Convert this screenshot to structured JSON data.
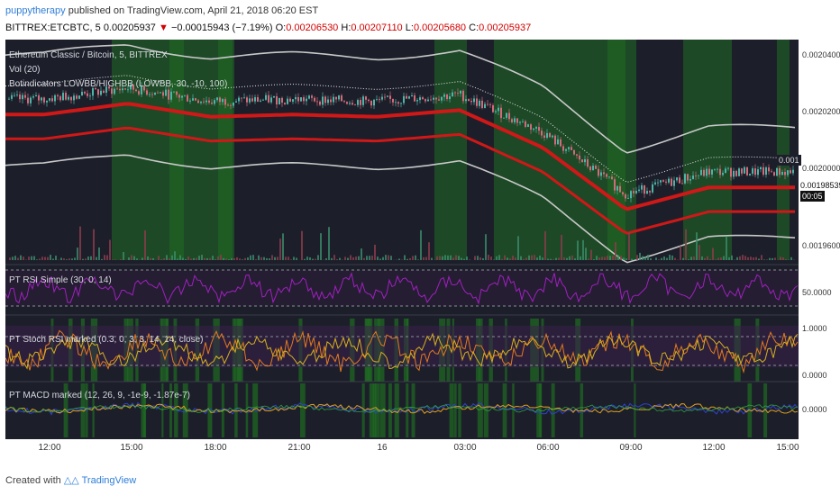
{
  "header": {
    "user": "puppytherapy",
    "published": "published on TradingView.com, April 21, 2018 06:20 EST"
  },
  "ticker": {
    "symbol": "BITTREX:ETCBTC, 5",
    "last": "0.00205937",
    "arrow": "▼",
    "change": "−0.00015943 (−7.19%)",
    "o_label": "O:",
    "o": "0.00206530",
    "h_label": "H:",
    "h": "0.00207110",
    "l_label": "L:",
    "l": "0.00205680",
    "c_label": "C:",
    "c": "0.00205937"
  },
  "legend": {
    "main": "Ethereum Classic / Bitcoin, 5, BITTREX",
    "vol": "Vol (20)",
    "bot": "Botindicators LOWBB/HIGHBB (LOWBB, 30, -10, 100)",
    "rsi": "PT RSI Simple (30, 0, 14)",
    "stoch": "PT Stoch RSI marked (0.3, 0, 3, 3, 14, 14, close)",
    "macd": "PT MACD marked (12, 26, 9, -1e-9, -1.87e-7)"
  },
  "yaxis": {
    "main_ticks": [
      "0.00204000",
      "0.00202000",
      "0.00200000",
      "0.00196000"
    ],
    "current_price": "0.00198539",
    "countdown": "00:05",
    "partial_tag": "0.001",
    "rsi_tick": "50.0000",
    "stoch_ticks": [
      "1.0000",
      "0.0000"
    ],
    "macd_tick": "0.0000"
  },
  "xaxis": {
    "labels": [
      "12:00",
      "15:00",
      "18:00",
      "21:00",
      "16",
      "03:00",
      "06:00",
      "09:00",
      "12:00",
      "15:00"
    ]
  },
  "footer": {
    "created": "Created with",
    "brand": "TradingView"
  },
  "colors": {
    "background": "#1c1f2a",
    "bollinger_outer": "#c8c8c8",
    "band_main": "#d01818",
    "green_highlight": "#1f6b22",
    "rsi_line": "#a020c0",
    "stoch_k": "#e07a20",
    "macd_line": "#3040d0",
    "signal_line": "#e0a020"
  },
  "chart_data": {
    "type": "line",
    "x": [
      "12:00",
      "15:00",
      "18:00",
      "21:00",
      "16",
      "03:00",
      "06:00",
      "09:00",
      "12:00",
      "15:00"
    ],
    "series": [
      {
        "values": [
          0.002018,
          0.002023,
          0.002017,
          0.002018,
          0.002017,
          0.00202,
          0.002003,
          0.001975,
          0.001985,
          0.001985
        ]
      }
    ],
    "ylim": [
      0.001945,
      0.002045
    ]
  }
}
